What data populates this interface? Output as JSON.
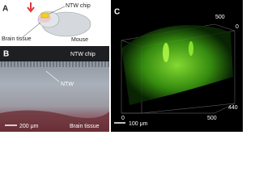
{
  "panels": {
    "a": {
      "label": "A",
      "chip": "NTW chip",
      "tissue": "Brain tissue",
      "animal": "Mouse"
    },
    "b": {
      "label": "B",
      "chip": "NTW chip",
      "ntw": "NTW",
      "scale": "200 μm",
      "tissue": "Brain tissue"
    },
    "c": {
      "label": "C",
      "top_max": "500",
      "top_min": "0",
      "depth": "440",
      "x_min": "0",
      "x_max": "500",
      "scale": "100 μm"
    }
  }
}
